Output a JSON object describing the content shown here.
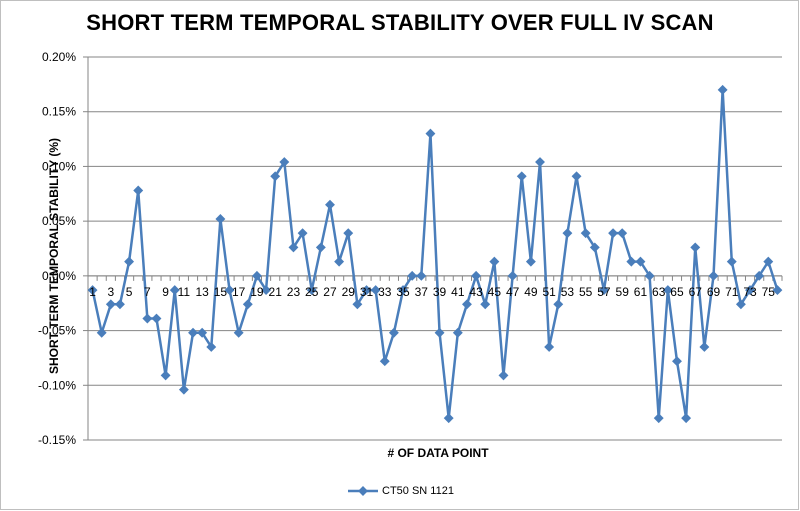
{
  "chart_data": {
    "type": "line",
    "title": "SHORT TERM TEMPORAL STABILITY  OVER  FULL IV SCAN",
    "xlabel": "# OF DATA POINT",
    "ylabel": "SHORT TERM TEMPORAL STABILITY (%)",
    "ylim": [
      -0.15,
      0.2
    ],
    "y_ticks": [
      0.2,
      0.15,
      0.1,
      0.05,
      0.0,
      -0.05,
      -0.1,
      -0.15
    ],
    "y_tick_labels": [
      "0.20%",
      "0.15%",
      "0.10%",
      "0.05%",
      "0.00%",
      "-0.05%",
      "-0.10%",
      "-0.15%"
    ],
    "x_tick_labels": [
      "1",
      "3",
      "5",
      "7",
      "9",
      "11",
      "13",
      "15",
      "17",
      "19",
      "21",
      "23",
      "25",
      "27",
      "29",
      "31",
      "33",
      "35",
      "37",
      "39",
      "41",
      "43",
      "45",
      "47",
      "49",
      "51",
      "53",
      "55",
      "57",
      "59",
      "61",
      "63",
      "65",
      "67",
      "69",
      "71",
      "73",
      "75"
    ],
    "grid": true,
    "legend_position": "bottom",
    "series": [
      {
        "name": "CT50 SN 1121",
        "color": "#4a7ebb",
        "x": [
          1,
          2,
          3,
          4,
          5,
          6,
          7,
          8,
          9,
          10,
          11,
          12,
          13,
          14,
          15,
          16,
          17,
          18,
          19,
          20,
          21,
          22,
          23,
          24,
          25,
          26,
          27,
          28,
          29,
          30,
          31,
          32,
          33,
          34,
          35,
          36,
          37,
          38,
          39,
          40,
          41,
          42,
          43,
          44,
          45,
          46,
          47,
          48,
          49,
          50,
          51,
          52,
          53,
          54,
          55,
          56,
          57,
          58,
          59,
          60,
          61,
          62,
          63,
          64,
          65,
          66,
          67,
          68,
          69,
          70,
          71,
          72,
          73,
          74,
          75,
          76
        ],
        "values": [
          -0.013,
          -0.052,
          -0.026,
          -0.026,
          0.013,
          0.078,
          -0.039,
          -0.039,
          -0.091,
          -0.013,
          -0.104,
          -0.052,
          -0.052,
          -0.065,
          0.052,
          -0.013,
          -0.052,
          -0.026,
          0.0,
          -0.013,
          0.091,
          0.104,
          0.026,
          0.039,
          -0.013,
          0.026,
          0.065,
          0.013,
          0.039,
          -0.026,
          -0.013,
          -0.013,
          -0.078,
          -0.052,
          -0.013,
          0.0,
          0.0,
          0.13,
          -0.052,
          -0.13,
          -0.052,
          -0.026,
          0.0,
          -0.026,
          0.013,
          -0.091,
          0.0,
          0.091,
          0.013,
          0.104,
          -0.065,
          -0.026,
          0.039,
          0.091,
          0.039,
          0.026,
          -0.013,
          0.039,
          0.039,
          0.013,
          0.013,
          0.0,
          -0.13,
          -0.013,
          -0.078,
          -0.13,
          0.026,
          -0.065,
          0.0,
          0.17,
          0.013,
          -0.026,
          -0.013,
          0.0,
          0.013,
          -0.013
        ]
      }
    ]
  }
}
